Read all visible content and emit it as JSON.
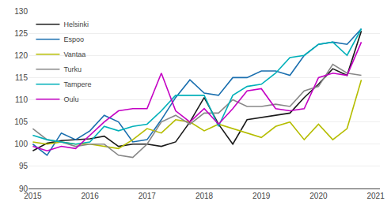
{
  "chart_data": {
    "type": "line",
    "x": [
      2015,
      2015.25,
      2015.5,
      2015.75,
      2016,
      2016.25,
      2016.5,
      2016.75,
      2017,
      2017.25,
      2017.5,
      2017.75,
      2018,
      2018.25,
      2018.5,
      2018.75,
      2019,
      2019.25,
      2019.5,
      2019.75,
      2020,
      2020.25,
      2020.5,
      2020.75
    ],
    "series": [
      {
        "name": "Helsinki",
        "color": "#1a1a1a",
        "values": [
          98.5,
          100.2,
          100.8,
          101.0,
          101.2,
          101.8,
          99.5,
          100.0,
          100.0,
          99.5,
          100.5,
          105.0,
          110.5,
          104.5,
          100.0,
          105.5,
          106.0,
          106.5,
          107.0,
          110.5,
          113.5,
          117.0,
          115.5,
          125.5
        ]
      },
      {
        "name": "Espoo",
        "color": "#1a6faf",
        "values": [
          100.0,
          97.5,
          102.5,
          101.0,
          103.0,
          106.5,
          105.0,
          100.5,
          101.0,
          105.5,
          110.5,
          114.5,
          111.5,
          111.0,
          115.0,
          115.0,
          116.5,
          116.5,
          115.5,
          120.0,
          122.5,
          123.0,
          122.5,
          126.0
        ]
      },
      {
        "name": "Vantaa",
        "color": "#b5bd00",
        "values": [
          100.5,
          100.0,
          100.5,
          100.0,
          100.0,
          99.5,
          99.0,
          101.0,
          103.5,
          102.5,
          105.5,
          105.0,
          103.0,
          104.5,
          103.5,
          102.5,
          101.5,
          104.0,
          105.0,
          101.0,
          104.5,
          101.0,
          103.5,
          114.5
        ]
      },
      {
        "name": "Turku",
        "color": "#888888",
        "values": [
          103.5,
          101.0,
          100.5,
          99.5,
          100.0,
          100.0,
          97.5,
          97.0,
          100.0,
          105.0,
          106.5,
          104.5,
          107.0,
          107.0,
          110.0,
          108.5,
          108.5,
          109.0,
          108.5,
          112.0,
          113.0,
          118.0,
          116.0,
          115.5
        ]
      },
      {
        "name": "Tampere",
        "color": "#00b0b9",
        "values": [
          102.0,
          101.0,
          100.5,
          100.0,
          100.5,
          104.0,
          103.0,
          104.0,
          104.5,
          107.5,
          111.0,
          111.0,
          111.0,
          104.0,
          111.0,
          113.0,
          113.5,
          116.0,
          119.5,
          120.0,
          122.5,
          123.0,
          120.0,
          126.0
        ]
      },
      {
        "name": "Oulu",
        "color": "#c400c4",
        "values": [
          99.5,
          98.5,
          99.5,
          99.0,
          102.0,
          105.0,
          107.5,
          108.0,
          108.0,
          116.0,
          107.5,
          105.0,
          108.0,
          104.5,
          108.0,
          112.0,
          112.5,
          108.0,
          107.5,
          108.0,
          115.0,
          116.0,
          115.5,
          123.0
        ]
      }
    ],
    "xlim": [
      2014.925,
      2021.075
    ],
    "xticks": [
      2015,
      2016,
      2017,
      2018,
      2019,
      2020,
      2021
    ],
    "ylim": [
      90,
      130
    ],
    "yticks": [
      90,
      95,
      100,
      105,
      110,
      115,
      120,
      125,
      130
    ],
    "grid": true,
    "legend": "upper left"
  }
}
